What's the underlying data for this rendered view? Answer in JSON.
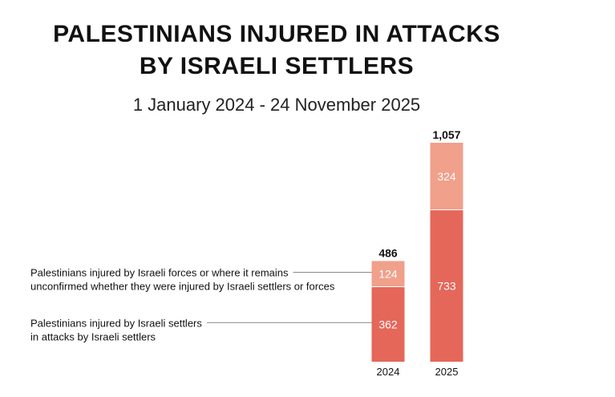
{
  "chart_data": {
    "type": "bar",
    "stacked": true,
    "title": [
      "PALESTINIANS INJURED IN ATTACKS",
      "BY ISRAELI SETTLERS"
    ],
    "subtitle": "1 January 2024 - 24 November 2025",
    "categories": [
      "2024",
      "2025"
    ],
    "totals": [
      "486",
      "1,057"
    ],
    "series": [
      {
        "name": "Palestinians injured by Israeli settlers in attacks by Israeli settlers",
        "legend_lines": [
          "Palestinians injured by Israeli settlers",
          "in attacks by Israeli settlers"
        ],
        "values": [
          362,
          733
        ],
        "color": "#e5675a"
      },
      {
        "name": "Palestinians injured by Israeli forces or where it remains unconfirmed whether they were injured by Israeli settlers or forces",
        "legend_lines": [
          "Palestinians injured by Israeli forces or where it remains",
          "unconfirmed whether they were injured by Israeli settlers or forces"
        ],
        "values": [
          124,
          324
        ],
        "color": "#f0a08b"
      }
    ],
    "ylim": [
      0,
      1057
    ]
  }
}
